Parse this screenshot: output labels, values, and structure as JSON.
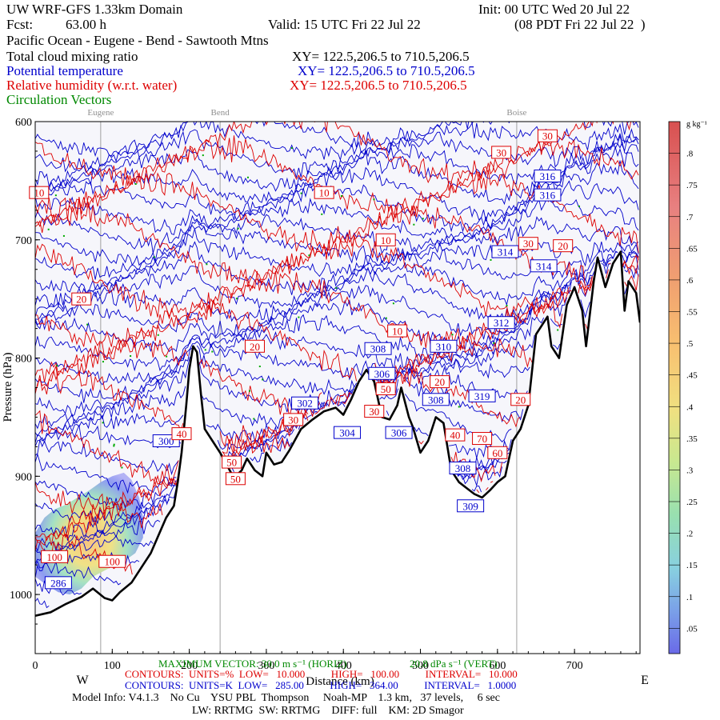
{
  "header": {
    "title": "UW WRF-GFS 1.33km Domain",
    "init": "Init: 00 UTC Wed 20 Jul 22",
    "fcst_label": "Fcst:",
    "fcst_value": "63.00 h",
    "valid": "Valid: 15 UTC Fri 22 Jul 22",
    "valid_local": "(08 PDT Fri 22 Jul 22  )",
    "region": "Pacific Ocean - Eugene - Bend - Sawtooth Mtns",
    "fields": [
      {
        "name": "Total cloud mixing ratio",
        "xy": "XY= 122.5,206.5 to 710.5,206.5",
        "color": "#000000"
      },
      {
        "name": "Potential temperature",
        "xy": "XY= 122.5,206.5 to 710.5,206.5",
        "color": "#0000cc"
      },
      {
        "name": "Relative humidity (w.r.t. water)",
        "xy": "XY= 122.5,206.5 to 710.5,206.5",
        "color": "#dd0000"
      },
      {
        "name": "Circulation Vectors",
        "xy": "",
        "color": "#008800"
      }
    ]
  },
  "chart_data": {
    "type": "cross-section",
    "xlabel": "Distance (km)",
    "ylabel": "Pressure (hPa)",
    "xlim": [
      0,
      785
    ],
    "ylim": [
      1050,
      600
    ],
    "xticks": [
      0,
      100,
      200,
      300,
      400,
      500,
      600,
      700
    ],
    "yticks": [
      600,
      700,
      800,
      900,
      1000
    ],
    "ytick_labels": [
      "600",
      "700",
      "800",
      "900",
      "1000"
    ],
    "west_label": "W",
    "east_label": "E",
    "cities": [
      {
        "name": "Eugene",
        "x": 85
      },
      {
        "name": "Bend",
        "x": 240
      },
      {
        "name": "Boise",
        "x": 625
      }
    ],
    "terrain": {
      "x": [
        0,
        20,
        40,
        60,
        75,
        90,
        100,
        110,
        125,
        140,
        150,
        160,
        170,
        180,
        185,
        190,
        196,
        200,
        205,
        210,
        215,
        220,
        230,
        240,
        255,
        260,
        268,
        275,
        285,
        295,
        300,
        310,
        320,
        330,
        345,
        360,
        375,
        390,
        400,
        410,
        420,
        430,
        440,
        450,
        460,
        470,
        475,
        485,
        490,
        500,
        510,
        520,
        530,
        540,
        550,
        560,
        570,
        580,
        590,
        600,
        610,
        620,
        630,
        640,
        650,
        660,
        665,
        670,
        680,
        690,
        700,
        710,
        715,
        725,
        730,
        740,
        750,
        760,
        765,
        770,
        780,
        785
      ],
      "p": [
        1018,
        1015,
        1008,
        1002,
        995,
        1003,
        1005,
        998,
        990,
        975,
        965,
        950,
        935,
        925,
        905,
        880,
        840,
        810,
        790,
        795,
        830,
        860,
        870,
        880,
        898,
        900,
        895,
        885,
        895,
        900,
        880,
        890,
        888,
        878,
        860,
        852,
        845,
        842,
        848,
        835,
        820,
        810,
        820,
        850,
        852,
        840,
        825,
        850,
        858,
        880,
        870,
        850,
        855,
        895,
        905,
        910,
        915,
        918,
        912,
        905,
        900,
        870,
        860,
        840,
        780,
        770,
        765,
        790,
        800,
        755,
        740,
        760,
        790,
        735,
        715,
        740,
        720,
        710,
        760,
        735,
        745,
        770
      ]
    },
    "theta_contours": {
      "units": "K",
      "low": 285,
      "high": 364,
      "interval": 1,
      "labels": [
        {
          "text": "286",
          "x": 30,
          "p": 990
        },
        {
          "text": "300",
          "x": 170,
          "p": 870
        },
        {
          "text": "302",
          "x": 350,
          "p": 838
        },
        {
          "text": "304",
          "x": 405,
          "p": 863
        },
        {
          "text": "306",
          "x": 450,
          "p": 813
        },
        {
          "text": "306",
          "x": 472,
          "p": 863
        },
        {
          "text": "308",
          "x": 445,
          "p": 792
        },
        {
          "text": "308",
          "x": 520,
          "p": 835
        },
        {
          "text": "308",
          "x": 555,
          "p": 893
        },
        {
          "text": "310",
          "x": 530,
          "p": 790
        },
        {
          "text": "312",
          "x": 605,
          "p": 770
        },
        {
          "text": "314",
          "x": 610,
          "p": 710
        },
        {
          "text": "314",
          "x": 660,
          "p": 722
        },
        {
          "text": "316",
          "x": 665,
          "p": 662
        },
        {
          "text": "316",
          "x": 665,
          "p": 646
        },
        {
          "text": "319",
          "x": 580,
          "p": 832
        },
        {
          "text": "309",
          "x": 565,
          "p": 925
        }
      ]
    },
    "rh_contours": {
      "units": "%",
      "low": 10,
      "high": 100,
      "interval": 10,
      "labels": [
        {
          "text": "10",
          "x": 5,
          "p": 660
        },
        {
          "text": "10",
          "x": 375,
          "p": 660
        },
        {
          "text": "10",
          "x": 455,
          "p": 700
        },
        {
          "text": "10",
          "x": 470,
          "p": 777
        },
        {
          "text": "20",
          "x": 60,
          "p": 750
        },
        {
          "text": "20",
          "x": 285,
          "p": 790
        },
        {
          "text": "20",
          "x": 525,
          "p": 820
        },
        {
          "text": "20",
          "x": 630,
          "p": 835
        },
        {
          "text": "20",
          "x": 685,
          "p": 705
        },
        {
          "text": "30",
          "x": 605,
          "p": 626
        },
        {
          "text": "30",
          "x": 665,
          "p": 612
        },
        {
          "text": "30",
          "x": 640,
          "p": 703
        },
        {
          "text": "30",
          "x": 335,
          "p": 852
        },
        {
          "text": "30",
          "x": 440,
          "p": 845
        },
        {
          "text": "40",
          "x": 190,
          "p": 864
        },
        {
          "text": "40",
          "x": 545,
          "p": 865
        },
        {
          "text": "50",
          "x": 255,
          "p": 888
        },
        {
          "text": "50",
          "x": 260,
          "p": 902
        },
        {
          "text": "50",
          "x": 455,
          "p": 826
        },
        {
          "text": "70",
          "x": 580,
          "p": 868
        },
        {
          "text": "60",
          "x": 600,
          "p": 880
        },
        {
          "text": "100",
          "x": 25,
          "p": 968
        },
        {
          "text": "100",
          "x": 100,
          "p": 972
        }
      ]
    },
    "colorbar": {
      "units": "g kg⁻¹",
      "ticks": [
        ".8",
        ".75",
        ".7",
        ".65",
        ".6",
        ".55",
        ".5",
        ".45",
        ".4",
        ".35",
        ".3",
        ".25",
        ".2",
        ".15",
        ".1",
        ".05"
      ],
      "min": 0.01,
      "max": 0.85
    }
  },
  "footer": {
    "max_vector": "MAXIMUM VECTOR: 30.0 m s⁻¹ (HORIZ)",
    "max_vector_vert": "20.8 dPa s⁻¹ (VERT)",
    "rh_line": "CONTOURS:  UNITS=%  LOW=   10.000          HIGH=   100.00          INTERVAL=   10.000",
    "theta_line": "CONTOURS:  UNITS=K  LOW=   285.00          HIGH=   364.00          INTERVAL=   1.0000",
    "model_info": "Model Info: V4.1.3    No Cu    YSU PBL  Thompson     Noah-MP    1.3 km,   37 levels,     6 sec",
    "model_info2": "LW: RRTMG  SW: RRTMG    DIFF: full    KM: 2D Smagor"
  }
}
